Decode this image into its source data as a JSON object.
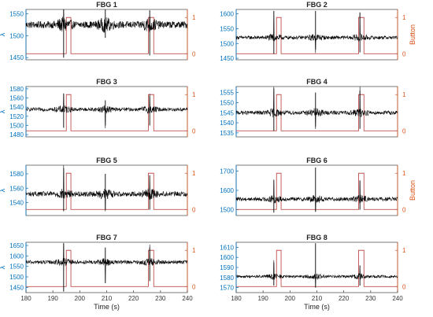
{
  "figure": {
    "left_axis_symbol": "λ",
    "right_axis_label": "Button",
    "x_axis_label": "Time (s)",
    "colors": {
      "signal": "#000000",
      "button": "#c0504d",
      "left_axis": "#0072bd",
      "right_axis": "#d95319"
    }
  },
  "chart_data": [
    {
      "type": "line",
      "title": "FBG 1",
      "xlim": [
        180,
        240
      ],
      "ylim": [
        1445,
        1560
      ],
      "yticks": [
        1450,
        1500,
        1550
      ],
      "y2ticks": [
        0,
        1
      ],
      "xticks": [],
      "ylabel": "λ",
      "y2label": "",
      "signal": {
        "base": 1525,
        "noise": 8,
        "spikes": [
          {
            "t": 194,
            "top": 1560,
            "bottom": 1450
          },
          {
            "t": 209.5,
            "top": 1560,
            "bottom": 1495
          },
          {
            "t": 226,
            "top": 1558,
            "bottom": 1455
          }
        ]
      },
      "button": {
        "high_intervals": [
          [
            195,
            196.7
          ],
          [
            225.5,
            227.5
          ]
        ]
      }
    },
    {
      "type": "line",
      "title": "FBG 2",
      "xlim": [
        180,
        240
      ],
      "ylim": [
        1445,
        1615
      ],
      "yticks": [
        1450,
        1500,
        1550,
        1600
      ],
      "y2ticks": [
        0,
        1
      ],
      "xticks": [],
      "ylabel": "",
      "y2label": "Button",
      "signal": {
        "base": 1520,
        "noise": 6,
        "spikes": [
          {
            "t": 194,
            "top": 1610,
            "bottom": 1465
          },
          {
            "t": 209.5,
            "top": 1610,
            "bottom": 1480
          },
          {
            "t": 226,
            "top": 1605,
            "bottom": 1470
          }
        ]
      },
      "button": {
        "high_intervals": [
          [
            195,
            196.7
          ],
          [
            225.5,
            227.5
          ]
        ]
      }
    },
    {
      "type": "line",
      "title": "FBG 3",
      "xlim": [
        180,
        240
      ],
      "ylim": [
        1475,
        1585
      ],
      "yticks": [
        1480,
        1500,
        1520,
        1540,
        1560,
        1580
      ],
      "y2ticks": [
        0,
        1
      ],
      "xticks": [],
      "ylabel": "λ",
      "y2label": "",
      "signal": {
        "base": 1535,
        "noise": 4,
        "spikes": [
          {
            "t": 194,
            "top": 1570,
            "bottom": 1495
          },
          {
            "t": 209.5,
            "top": 1555,
            "bottom": 1500
          },
          {
            "t": 226,
            "top": 1565,
            "bottom": 1500
          }
        ]
      },
      "button": {
        "high_intervals": [
          [
            195,
            196.7
          ],
          [
            225.5,
            227.5
          ]
        ]
      }
    },
    {
      "type": "line",
      "title": "FBG 4",
      "xlim": [
        180,
        240
      ],
      "ylim": [
        1533,
        1558
      ],
      "yticks": [
        1535,
        1540,
        1545,
        1550,
        1555
      ],
      "y2ticks": [
        0,
        1
      ],
      "xticks": [],
      "ylabel": "",
      "y2label": "",
      "signal": {
        "base": 1545,
        "noise": 1,
        "spikes": [
          {
            "t": 194,
            "top": 1557,
            "bottom": 1536
          },
          {
            "t": 209.5,
            "top": 1555,
            "bottom": 1538
          },
          {
            "t": 226,
            "top": 1556,
            "bottom": 1537
          }
        ]
      },
      "button": {
        "high_intervals": [
          [
            195,
            196.7
          ],
          [
            225.5,
            227.5
          ]
        ]
      }
    },
    {
      "type": "line",
      "title": "FBG 5",
      "xlim": [
        180,
        240
      ],
      "ylim": [
        1522,
        1592
      ],
      "yticks": [
        1540,
        1560,
        1580
      ],
      "y2ticks": [
        0,
        1
      ],
      "xticks": [],
      "ylabel": "λ",
      "y2label": "",
      "signal": {
        "base": 1552,
        "noise": 3.5,
        "spikes": [
          {
            "t": 194,
            "top": 1588,
            "bottom": 1528
          },
          {
            "t": 209.5,
            "top": 1580,
            "bottom": 1530
          },
          {
            "t": 226,
            "top": 1578,
            "bottom": 1530
          }
        ]
      },
      "button": {
        "high_intervals": [
          [
            195,
            196.7
          ],
          [
            225.5,
            227.5
          ]
        ]
      }
    },
    {
      "type": "line",
      "title": "FBG 6",
      "xlim": [
        180,
        240
      ],
      "ylim": [
        1470,
        1730
      ],
      "yticks": [
        1500,
        1600,
        1700
      ],
      "y2ticks": [
        0,
        1
      ],
      "xticks": [],
      "ylabel": "",
      "y2label": "Button",
      "signal": {
        "base": 1555,
        "noise": 10,
        "spikes": [
          {
            "t": 194,
            "top": 1655,
            "bottom": 1485
          },
          {
            "t": 209.5,
            "top": 1718,
            "bottom": 1490
          },
          {
            "t": 226,
            "top": 1650,
            "bottom": 1500
          }
        ]
      },
      "button": {
        "high_intervals": [
          [
            195,
            196.7
          ],
          [
            225.5,
            227.5
          ]
        ]
      }
    },
    {
      "type": "line",
      "title": "FBG 7",
      "xlim": [
        180,
        240
      ],
      "ylim": [
        1425,
        1665
      ],
      "yticks": [
        1450,
        1500,
        1550,
        1600,
        1650
      ],
      "y2ticks": [
        0,
        1
      ],
      "xticks": [
        180,
        190,
        200,
        210,
        220,
        230,
        240
      ],
      "ylabel": "λ",
      "y2label": "",
      "xlabel": "Time (s)",
      "signal": {
        "base": 1570,
        "noise": 9,
        "spikes": [
          {
            "t": 194,
            "top": 1660,
            "bottom": 1430
          },
          {
            "t": 209.5,
            "top": 1640,
            "bottom": 1470
          },
          {
            "t": 226,
            "top": 1640,
            "bottom": 1480
          }
        ]
      },
      "button": {
        "high_intervals": [
          [
            195,
            196.7
          ],
          [
            225.5,
            227.5
          ]
        ]
      }
    },
    {
      "type": "line",
      "title": "FBG 8",
      "xlim": [
        180,
        240
      ],
      "ylim": [
        1565,
        1615
      ],
      "yticks": [
        1570,
        1580,
        1590,
        1600,
        1610
      ],
      "y2ticks": [
        0,
        1
      ],
      "xticks": [
        180,
        190,
        200,
        210,
        220,
        230,
        240
      ],
      "ylabel": "",
      "y2label": "",
      "xlabel": "Time (s)",
      "signal": {
        "base": 1581,
        "noise": 1.4,
        "spikes": [
          {
            "t": 194,
            "top": 1595,
            "bottom": 1572
          },
          {
            "t": 209.5,
            "top": 1614,
            "bottom": 1570
          },
          {
            "t": 226,
            "top": 1592,
            "bottom": 1572
          }
        ]
      },
      "button": {
        "high_intervals": [
          [
            195,
            196.7
          ],
          [
            225.5,
            227.5
          ]
        ]
      }
    }
  ]
}
